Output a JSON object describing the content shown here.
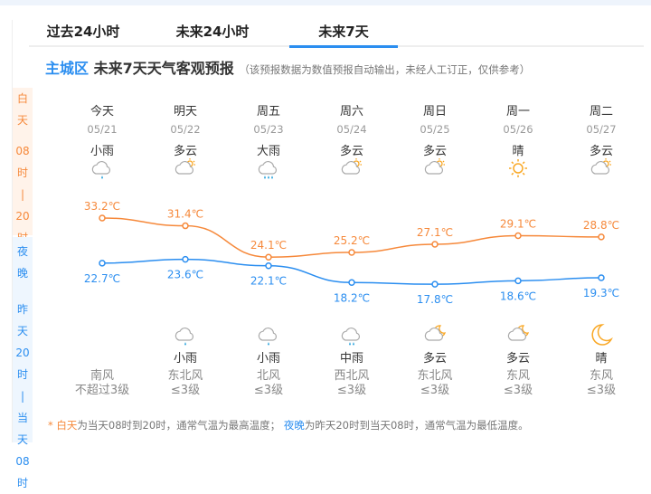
{
  "tabs": [
    {
      "label": "过去24小时"
    },
    {
      "label": "未来24小时"
    },
    {
      "label": "未来7天",
      "active": true
    }
  ],
  "header": {
    "city": "主城区",
    "title": "未来7天天气客观预报",
    "note": "（该预报数据为数值预报自动输出，未经人工订正，仅供参考）"
  },
  "bands": {
    "day": [
      "白",
      "天",
      "08",
      "时",
      "|",
      "20",
      "时"
    ],
    "night": [
      "夜",
      "晚",
      "昨",
      "天",
      "20",
      "时",
      "|",
      "当",
      "天",
      "08",
      "时"
    ]
  },
  "days": [
    {
      "name": "今天",
      "date": "05/21",
      "day_wx": "小雨",
      "day_icon": "light-rain",
      "high": "33.2℃",
      "low": "22.7℃",
      "night_wx": "",
      "night_icon": "",
      "wind_dir": "南风",
      "wind_level": "不超过3级"
    },
    {
      "name": "明天",
      "date": "05/22",
      "day_wx": "多云",
      "day_icon": "partly-cloudy",
      "high": "31.4℃",
      "low": "23.6℃",
      "night_wx": "小雨",
      "night_icon": "light-rain",
      "wind_dir": "东北风",
      "wind_level": "≤3级"
    },
    {
      "name": "周五",
      "date": "05/23",
      "day_wx": "大雨",
      "day_icon": "heavy-rain",
      "high": "24.1℃",
      "low": "22.1℃",
      "night_wx": "小雨",
      "night_icon": "light-rain",
      "wind_dir": "北风",
      "wind_level": "≤3级"
    },
    {
      "name": "周六",
      "date": "05/24",
      "day_wx": "多云",
      "day_icon": "partly-cloudy",
      "high": "25.2℃",
      "low": "18.2℃",
      "night_wx": "中雨",
      "night_icon": "moderate-rain",
      "wind_dir": "西北风",
      "wind_level": "≤3级"
    },
    {
      "name": "周日",
      "date": "05/25",
      "day_wx": "多云",
      "day_icon": "partly-cloudy",
      "high": "27.1℃",
      "low": "17.8℃",
      "night_wx": "多云",
      "night_icon": "partly-cloudy-night",
      "wind_dir": "东北风",
      "wind_level": "≤3级"
    },
    {
      "name": "周一",
      "date": "05/26",
      "day_wx": "晴",
      "day_icon": "sunny",
      "high": "29.1℃",
      "low": "18.6℃",
      "night_wx": "多云",
      "night_icon": "partly-cloudy-night",
      "wind_dir": "东风",
      "wind_level": "≤3级"
    },
    {
      "name": "周二",
      "date": "05/27",
      "day_wx": "多云",
      "day_icon": "partly-cloudy",
      "high": "28.8℃",
      "low": "19.3℃",
      "night_wx": "晴",
      "night_icon": "clear-night",
      "wind_dir": "东风",
      "wind_level": "≤3级"
    }
  ],
  "chart_data": {
    "type": "line",
    "categories": [
      "05/21",
      "05/22",
      "05/23",
      "05/24",
      "05/25",
      "05/26",
      "05/27"
    ],
    "series": [
      {
        "name": "白天最高温度",
        "values": [
          33.2,
          31.4,
          24.1,
          25.2,
          27.1,
          29.1,
          28.8
        ],
        "color": "#f6893b"
      },
      {
        "name": "夜晚最低温度",
        "values": [
          22.7,
          23.6,
          22.1,
          18.2,
          17.8,
          18.6,
          19.3
        ],
        "color": "#2b8ef0"
      }
    ]
  },
  "footer": {
    "star": "* ",
    "day": "白天",
    "day_text": "为当天08时到20时，通常气温为最高温度；",
    "night": "夜晚",
    "night_text": "为昨天20时到当天08时，通常气温为最低温度。"
  }
}
